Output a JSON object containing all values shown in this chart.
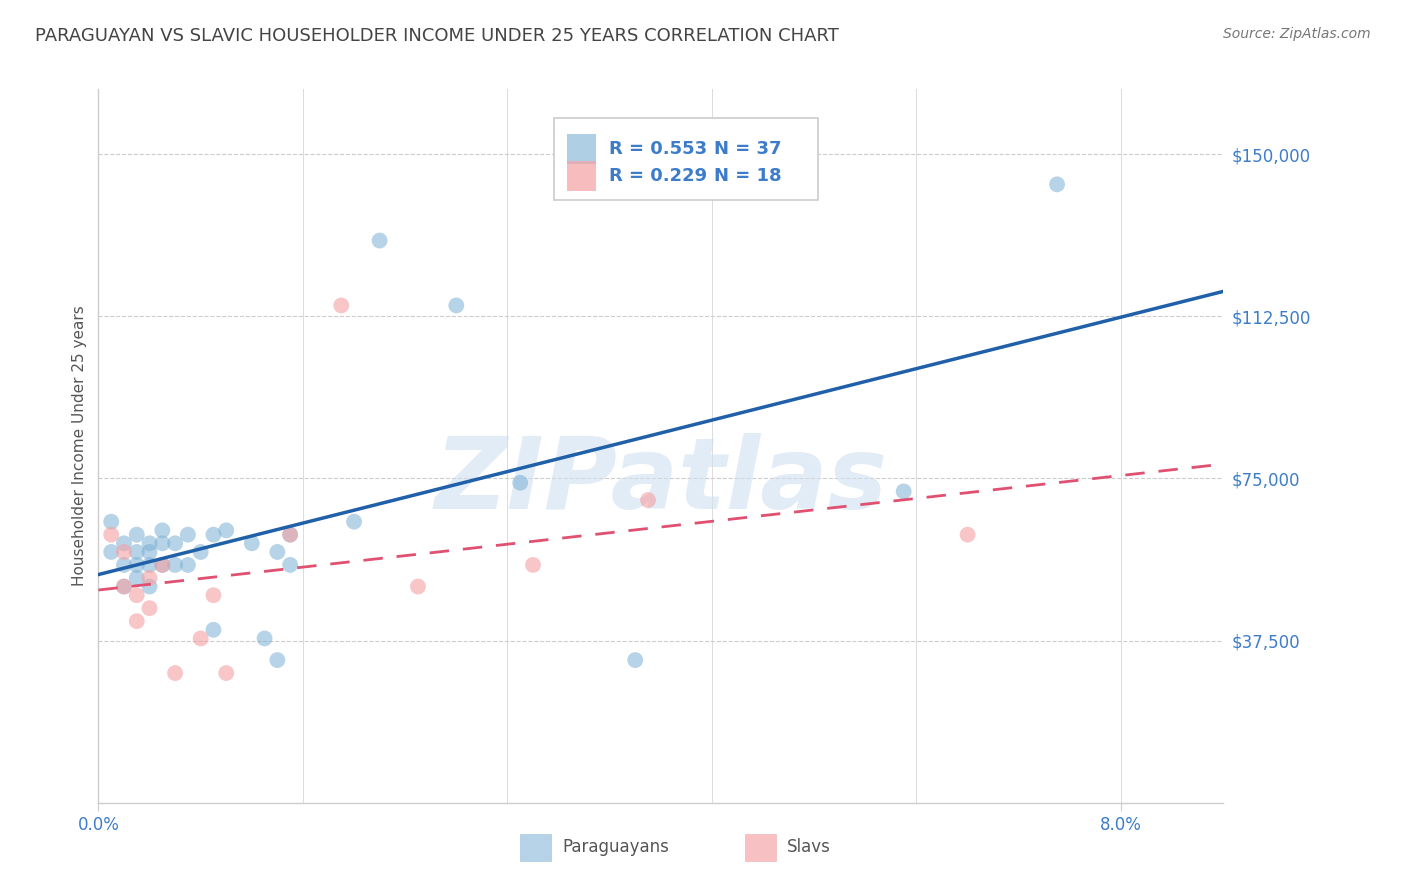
{
  "title": "PARAGUAYAN VS SLAVIC HOUSEHOLDER INCOME UNDER 25 YEARS CORRELATION CHART",
  "source": "Source: ZipAtlas.com",
  "ylabel": "Householder Income Under 25 years",
  "ytick_labels": [
    "$37,500",
    "$75,000",
    "$112,500",
    "$150,000"
  ],
  "ytick_values": [
    37500,
    75000,
    112500,
    150000
  ],
  "ylim": [
    0,
    165000
  ],
  "xlim": [
    0.0,
    0.088
  ],
  "legend_blue_r": "R = 0.553",
  "legend_blue_n": "N = 37",
  "legend_pink_r": "R = 0.229",
  "legend_pink_n": "N = 18",
  "legend_label_blue": "Paraguayans",
  "legend_label_pink": "Slavs",
  "paraguayan_x": [
    0.001,
    0.001,
    0.002,
    0.002,
    0.002,
    0.003,
    0.003,
    0.003,
    0.003,
    0.004,
    0.004,
    0.004,
    0.004,
    0.005,
    0.005,
    0.005,
    0.006,
    0.006,
    0.007,
    0.007,
    0.008,
    0.009,
    0.009,
    0.01,
    0.012,
    0.013,
    0.014,
    0.014,
    0.015,
    0.015,
    0.02,
    0.022,
    0.028,
    0.033,
    0.042,
    0.063,
    0.075
  ],
  "paraguayan_y": [
    65000,
    58000,
    60000,
    55000,
    50000,
    62000,
    58000,
    55000,
    52000,
    60000,
    58000,
    55000,
    50000,
    63000,
    60000,
    55000,
    60000,
    55000,
    62000,
    55000,
    58000,
    62000,
    40000,
    63000,
    60000,
    38000,
    58000,
    33000,
    62000,
    55000,
    65000,
    130000,
    115000,
    74000,
    33000,
    72000,
    143000
  ],
  "slav_x": [
    0.001,
    0.002,
    0.002,
    0.003,
    0.003,
    0.004,
    0.004,
    0.005,
    0.006,
    0.008,
    0.009,
    0.01,
    0.015,
    0.019,
    0.025,
    0.034,
    0.043,
    0.068
  ],
  "slav_y": [
    62000,
    58000,
    50000,
    48000,
    42000,
    52000,
    45000,
    55000,
    30000,
    38000,
    48000,
    30000,
    62000,
    115000,
    50000,
    55000,
    70000,
    62000
  ],
  "blue_scatter_color": "#7bafd4",
  "pink_scatter_color": "#f4a0a3",
  "blue_line_color": "#2060a8",
  "pink_line_color": "#e05070",
  "tick_color": "#3d7cc9",
  "grid_color": "#cccccc",
  "background_color": "#ffffff",
  "watermark_color": "#d0e0f0",
  "title_color": "#444444",
  "source_color": "#777777",
  "ylabel_color": "#555555"
}
